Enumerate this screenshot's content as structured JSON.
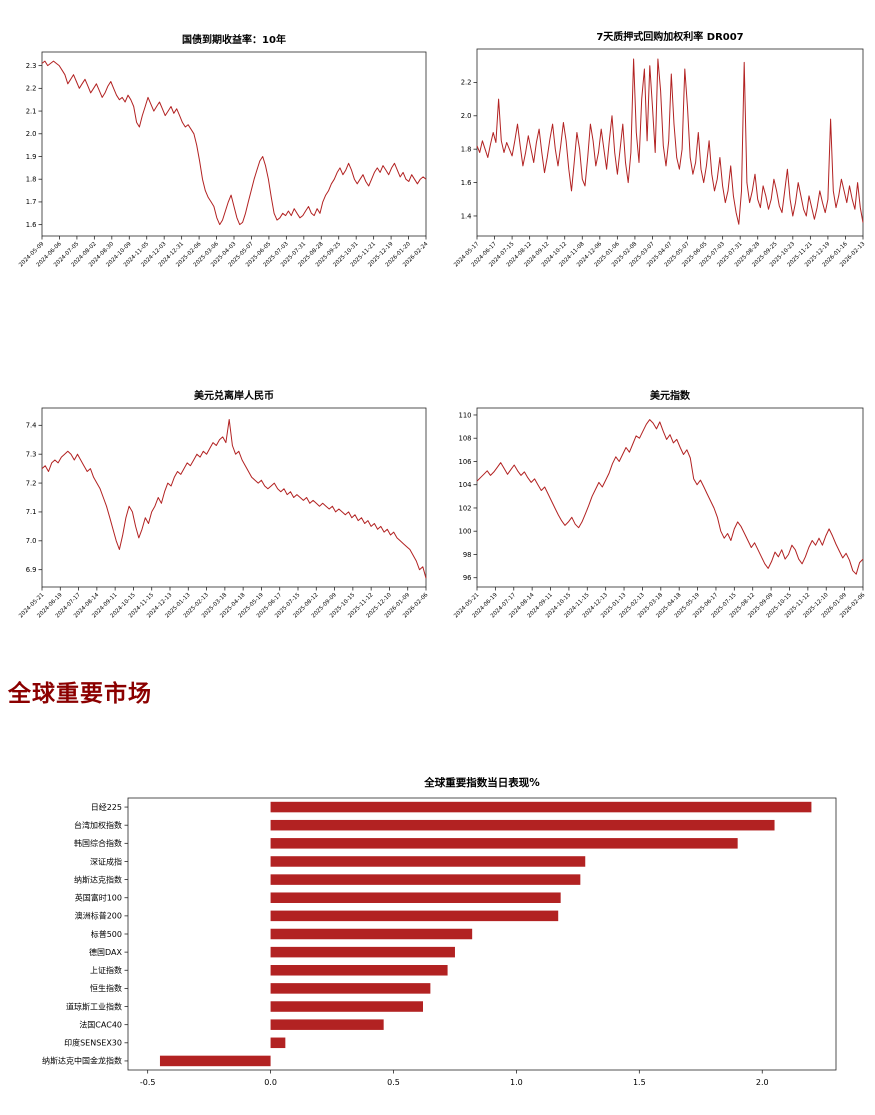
{
  "colors": {
    "line": "#B22222",
    "bar": "#B22222",
    "heading": "#8B0000",
    "background": "#ffffff"
  },
  "section_heading": {
    "label": "全球重要市场"
  },
  "chart_data": [
    {
      "id": "treasury_yield_10y",
      "type": "line",
      "title": "国债到期收益率：10年",
      "ylim": [
        1.55,
        2.36
      ],
      "ytick_values": [
        1.6,
        1.7,
        1.8,
        1.9,
        2.0,
        2.1,
        2.2,
        2.3
      ],
      "ytick_labels": [
        "1.6",
        "1.7",
        "1.8",
        "1.9",
        "2.0",
        "2.1",
        "2.2",
        "2.3"
      ],
      "x_tick_labels": [
        "2024-05-09",
        "2024-06-06",
        "2024-07-05",
        "2024-08-02",
        "2024-08-30",
        "2024-10-09",
        "2024-11-05",
        "2024-12-03",
        "2024-12-31",
        "2025-02-06",
        "2025-03-06",
        "2025-04-03",
        "2025-05-07",
        "2025-06-05",
        "2025-07-03",
        "2025-07-31",
        "2025-08-28",
        "2025-09-25",
        "2025-10-31",
        "2025-11-21",
        "2025-12-19",
        "2026-01-20",
        "2026-02-24"
      ],
      "values": [
        2.31,
        2.32,
        2.3,
        2.31,
        2.32,
        2.31,
        2.3,
        2.28,
        2.26,
        2.22,
        2.24,
        2.26,
        2.23,
        2.2,
        2.22,
        2.24,
        2.21,
        2.18,
        2.2,
        2.22,
        2.19,
        2.16,
        2.18,
        2.21,
        2.23,
        2.2,
        2.17,
        2.15,
        2.16,
        2.14,
        2.17,
        2.15,
        2.12,
        2.05,
        2.03,
        2.08,
        2.12,
        2.16,
        2.13,
        2.1,
        2.12,
        2.14,
        2.11,
        2.08,
        2.1,
        2.12,
        2.09,
        2.11,
        2.08,
        2.05,
        2.03,
        2.04,
        2.02,
        2.0,
        1.95,
        1.88,
        1.8,
        1.75,
        1.72,
        1.7,
        1.68,
        1.63,
        1.6,
        1.62,
        1.66,
        1.7,
        1.73,
        1.68,
        1.63,
        1.6,
        1.61,
        1.65,
        1.7,
        1.75,
        1.8,
        1.84,
        1.88,
        1.9,
        1.86,
        1.8,
        1.72,
        1.65,
        1.62,
        1.63,
        1.65,
        1.64,
        1.66,
        1.64,
        1.67,
        1.65,
        1.63,
        1.64,
        1.66,
        1.68,
        1.65,
        1.64,
        1.67,
        1.65,
        1.7,
        1.73,
        1.75,
        1.78,
        1.8,
        1.83,
        1.85,
        1.82,
        1.84,
        1.87,
        1.84,
        1.8,
        1.78,
        1.8,
        1.82,
        1.79,
        1.77,
        1.8,
        1.83,
        1.85,
        1.83,
        1.86,
        1.84,
        1.82,
        1.85,
        1.87,
        1.84,
        1.81,
        1.83,
        1.8,
        1.79,
        1.82,
        1.8,
        1.78,
        1.8,
        1.81,
        1.8
      ]
    },
    {
      "id": "dr007",
      "type": "line",
      "title": "7天质押式回购加权利率 DR007",
      "ylim": [
        1.28,
        2.4
      ],
      "ytick_values": [
        1.4,
        1.6,
        1.8,
        2.0,
        2.2
      ],
      "ytick_labels": [
        "1.4",
        "1.6",
        "1.8",
        "2.0",
        "2.2"
      ],
      "x_tick_labels": [
        "2024-05-17",
        "2024-06-17",
        "2024-07-15",
        "2024-08-12",
        "2024-09-12",
        "2024-10-12",
        "2024-11-08",
        "2024-12-06",
        "2025-01-06",
        "2025-02-08",
        "2025-03-07",
        "2025-04-07",
        "2025-05-07",
        "2025-06-05",
        "2025-07-03",
        "2025-07-31",
        "2025-08-28",
        "2025-09-25",
        "2025-10-23",
        "2025-11-21",
        "2025-12-19",
        "2026-01-16",
        "2026-02-13"
      ],
      "values": [
        1.82,
        1.78,
        1.85,
        1.8,
        1.75,
        1.83,
        1.9,
        1.84,
        2.1,
        1.85,
        1.78,
        1.84,
        1.8,
        1.76,
        1.85,
        1.95,
        1.82,
        1.7,
        1.78,
        1.88,
        1.8,
        1.72,
        1.84,
        1.92,
        1.78,
        1.66,
        1.75,
        1.86,
        1.95,
        1.8,
        1.7,
        1.82,
        1.96,
        1.85,
        1.68,
        1.55,
        1.72,
        1.9,
        1.8,
        1.62,
        1.58,
        1.75,
        1.95,
        1.85,
        1.7,
        1.78,
        1.92,
        1.8,
        1.68,
        1.85,
        2.0,
        1.78,
        1.65,
        1.8,
        1.95,
        1.72,
        1.6,
        1.78,
        2.34,
        1.9,
        1.72,
        2.1,
        2.28,
        1.85,
        2.3,
        2.05,
        1.78,
        2.34,
        2.15,
        1.82,
        1.7,
        1.85,
        2.25,
        1.95,
        1.75,
        1.68,
        1.8,
        2.28,
        2.05,
        1.75,
        1.65,
        1.72,
        1.9,
        1.68,
        1.6,
        1.7,
        1.85,
        1.65,
        1.55,
        1.62,
        1.75,
        1.58,
        1.48,
        1.55,
        1.7,
        1.52,
        1.42,
        1.35,
        1.55,
        2.32,
        1.6,
        1.48,
        1.55,
        1.65,
        1.5,
        1.45,
        1.58,
        1.52,
        1.44,
        1.5,
        1.62,
        1.55,
        1.46,
        1.42,
        1.55,
        1.68,
        1.5,
        1.4,
        1.48,
        1.6,
        1.52,
        1.44,
        1.4,
        1.52,
        1.45,
        1.38,
        1.45,
        1.55,
        1.48,
        1.42,
        1.5,
        1.98,
        1.55,
        1.45,
        1.52,
        1.62,
        1.55,
        1.48,
        1.58,
        1.5,
        1.44,
        1.6,
        1.45,
        1.36
      ]
    },
    {
      "id": "usd_cnh",
      "type": "line",
      "title": "美元兑离岸人民币",
      "ylim": [
        6.84,
        7.46
      ],
      "ytick_values": [
        6.9,
        7.0,
        7.1,
        7.2,
        7.3,
        7.4
      ],
      "ytick_labels": [
        "6.9",
        "7.0",
        "7.1",
        "7.2",
        "7.3",
        "7.4"
      ],
      "x_tick_labels": [
        "2024-05-21",
        "2024-06-19",
        "2024-07-17",
        "2024-08-14",
        "2024-09-11",
        "2024-10-15",
        "2024-11-15",
        "2024-12-13",
        "2025-01-13",
        "2025-02-13",
        "2025-03-18",
        "2025-04-18",
        "2025-05-19",
        "2025-06-17",
        "2025-07-15",
        "2025-08-12",
        "2025-09-09",
        "2025-10-15",
        "2025-11-12",
        "2025-12-10",
        "2026-01-09",
        "2026-02-06"
      ],
      "values": [
        7.25,
        7.26,
        7.24,
        7.27,
        7.28,
        7.27,
        7.29,
        7.3,
        7.31,
        7.3,
        7.28,
        7.3,
        7.28,
        7.26,
        7.24,
        7.25,
        7.22,
        7.2,
        7.18,
        7.15,
        7.12,
        7.08,
        7.04,
        7.0,
        6.97,
        7.02,
        7.08,
        7.12,
        7.1,
        7.05,
        7.01,
        7.04,
        7.08,
        7.06,
        7.1,
        7.12,
        7.15,
        7.13,
        7.17,
        7.2,
        7.19,
        7.22,
        7.24,
        7.23,
        7.25,
        7.27,
        7.26,
        7.28,
        7.3,
        7.29,
        7.31,
        7.3,
        7.32,
        7.34,
        7.33,
        7.35,
        7.36,
        7.34,
        7.42,
        7.33,
        7.3,
        7.31,
        7.28,
        7.26,
        7.24,
        7.22,
        7.21,
        7.2,
        7.21,
        7.19,
        7.18,
        7.19,
        7.2,
        7.18,
        7.17,
        7.18,
        7.16,
        7.17,
        7.15,
        7.16,
        7.15,
        7.14,
        7.15,
        7.13,
        7.14,
        7.13,
        7.12,
        7.13,
        7.12,
        7.11,
        7.12,
        7.1,
        7.11,
        7.1,
        7.09,
        7.1,
        7.08,
        7.09,
        7.07,
        7.08,
        7.06,
        7.07,
        7.05,
        7.06,
        7.04,
        7.05,
        7.03,
        7.04,
        7.02,
        7.03,
        7.01,
        7.0,
        6.99,
        6.98,
        6.97,
        6.95,
        6.93,
        6.9,
        6.91,
        6.87
      ]
    },
    {
      "id": "dxy",
      "type": "line",
      "title": "美元指数",
      "ylim": [
        95.2,
        110.6
      ],
      "ytick_values": [
        96,
        98,
        100,
        102,
        104,
        106,
        108,
        110
      ],
      "ytick_labels": [
        "96",
        "98",
        "100",
        "102",
        "104",
        "106",
        "108",
        "110"
      ],
      "x_tick_labels": [
        "2024-05-21",
        "2024-06-19",
        "2024-07-17",
        "2024-08-14",
        "2024-09-11",
        "2024-10-15",
        "2024-11-15",
        "2024-12-13",
        "2025-01-13",
        "2025-02-13",
        "2025-03-18",
        "2025-04-18",
        "2025-05-19",
        "2025-06-17",
        "2025-07-15",
        "2025-08-12",
        "2025-09-09",
        "2025-10-15",
        "2025-11-12",
        "2025-12-10",
        "2026-01-09",
        "2026-02-06"
      ],
      "values": [
        104.3,
        104.6,
        104.9,
        105.2,
        104.8,
        105.1,
        105.5,
        105.9,
        105.4,
        104.9,
        105.3,
        105.7,
        105.2,
        104.8,
        105.1,
        104.6,
        104.2,
        104.5,
        104.0,
        103.5,
        103.8,
        103.2,
        102.6,
        102.0,
        101.4,
        100.9,
        100.5,
        100.8,
        101.2,
        100.6,
        100.3,
        100.8,
        101.5,
        102.2,
        103.0,
        103.6,
        104.2,
        103.8,
        104.4,
        105.0,
        105.8,
        106.4,
        106.0,
        106.6,
        107.2,
        106.8,
        107.5,
        108.2,
        108.0,
        108.6,
        109.2,
        109.6,
        109.3,
        108.8,
        109.4,
        108.6,
        107.9,
        108.3,
        107.6,
        107.9,
        107.2,
        106.6,
        107.0,
        106.3,
        104.5,
        104.0,
        104.4,
        103.8,
        103.2,
        102.6,
        102.0,
        101.2,
        100.0,
        99.4,
        99.8,
        99.2,
        100.2,
        100.8,
        100.4,
        99.8,
        99.2,
        98.6,
        99.0,
        98.4,
        97.8,
        97.2,
        96.8,
        97.4,
        98.2,
        97.8,
        98.4,
        97.6,
        98.0,
        98.8,
        98.4,
        97.6,
        97.2,
        97.8,
        98.6,
        99.2,
        98.8,
        99.4,
        98.8,
        99.6,
        100.2,
        99.6,
        98.9,
        98.3,
        97.7,
        98.1,
        97.5,
        96.6,
        96.3,
        97.3,
        97.6
      ]
    },
    {
      "id": "global_indices_daily",
      "type": "bar",
      "title": "全球重要指数当日表现%",
      "categories": [
        "日经225",
        "台湾加权指数",
        "韩国综合指数",
        "深证成指",
        "纳斯达克指数",
        "英国富时100",
        "澳洲标普200",
        "标普500",
        "德国DAX",
        "上证指数",
        "恒生指数",
        "道琼斯工业指数",
        "法国CAC40",
        "印度SENSEX30",
        "纳斯达克中国金龙指数"
      ],
      "values": [
        2.2,
        2.05,
        1.9,
        1.28,
        1.26,
        1.18,
        1.17,
        0.82,
        0.75,
        0.72,
        0.65,
        0.62,
        0.46,
        0.06,
        -0.45
      ],
      "xlim": [
        -0.58,
        2.3
      ],
      "xtick_values": [
        -0.5,
        0.0,
        0.5,
        1.0,
        1.5,
        2.0
      ],
      "xtick_labels": [
        "-0.5",
        "0.0",
        "0.5",
        "1.0",
        "1.5",
        "2.0"
      ]
    }
  ]
}
